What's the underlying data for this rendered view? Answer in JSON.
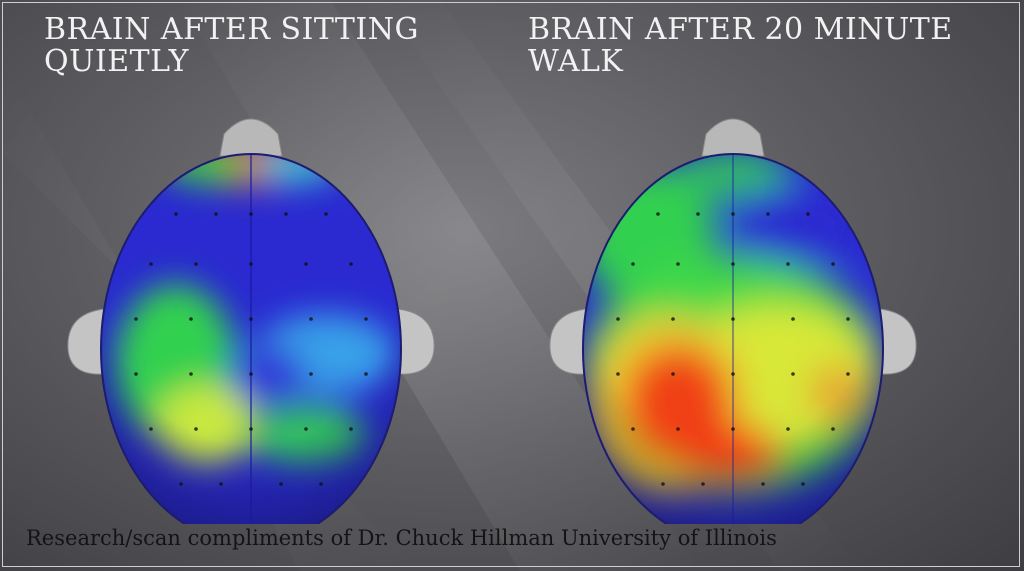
{
  "panels": [
    {
      "title_line1": "BRAIN AFTER SITTING",
      "title_line2": "QUIETLY"
    },
    {
      "title_line1": "BRAIN AFTER 20 MINUTE",
      "title_line2": "WALK"
    }
  ],
  "credit": "Research/scan  compliments of Dr. Chuck Hillman University of Illinois",
  "colors": {
    "background": "#5e5e62",
    "scale_low": "#2a2ad0",
    "scale_mid": "#22d64a",
    "scale_high": "#f03018",
    "title_text": "#f2f2f2",
    "credit_text": "#141414"
  }
}
